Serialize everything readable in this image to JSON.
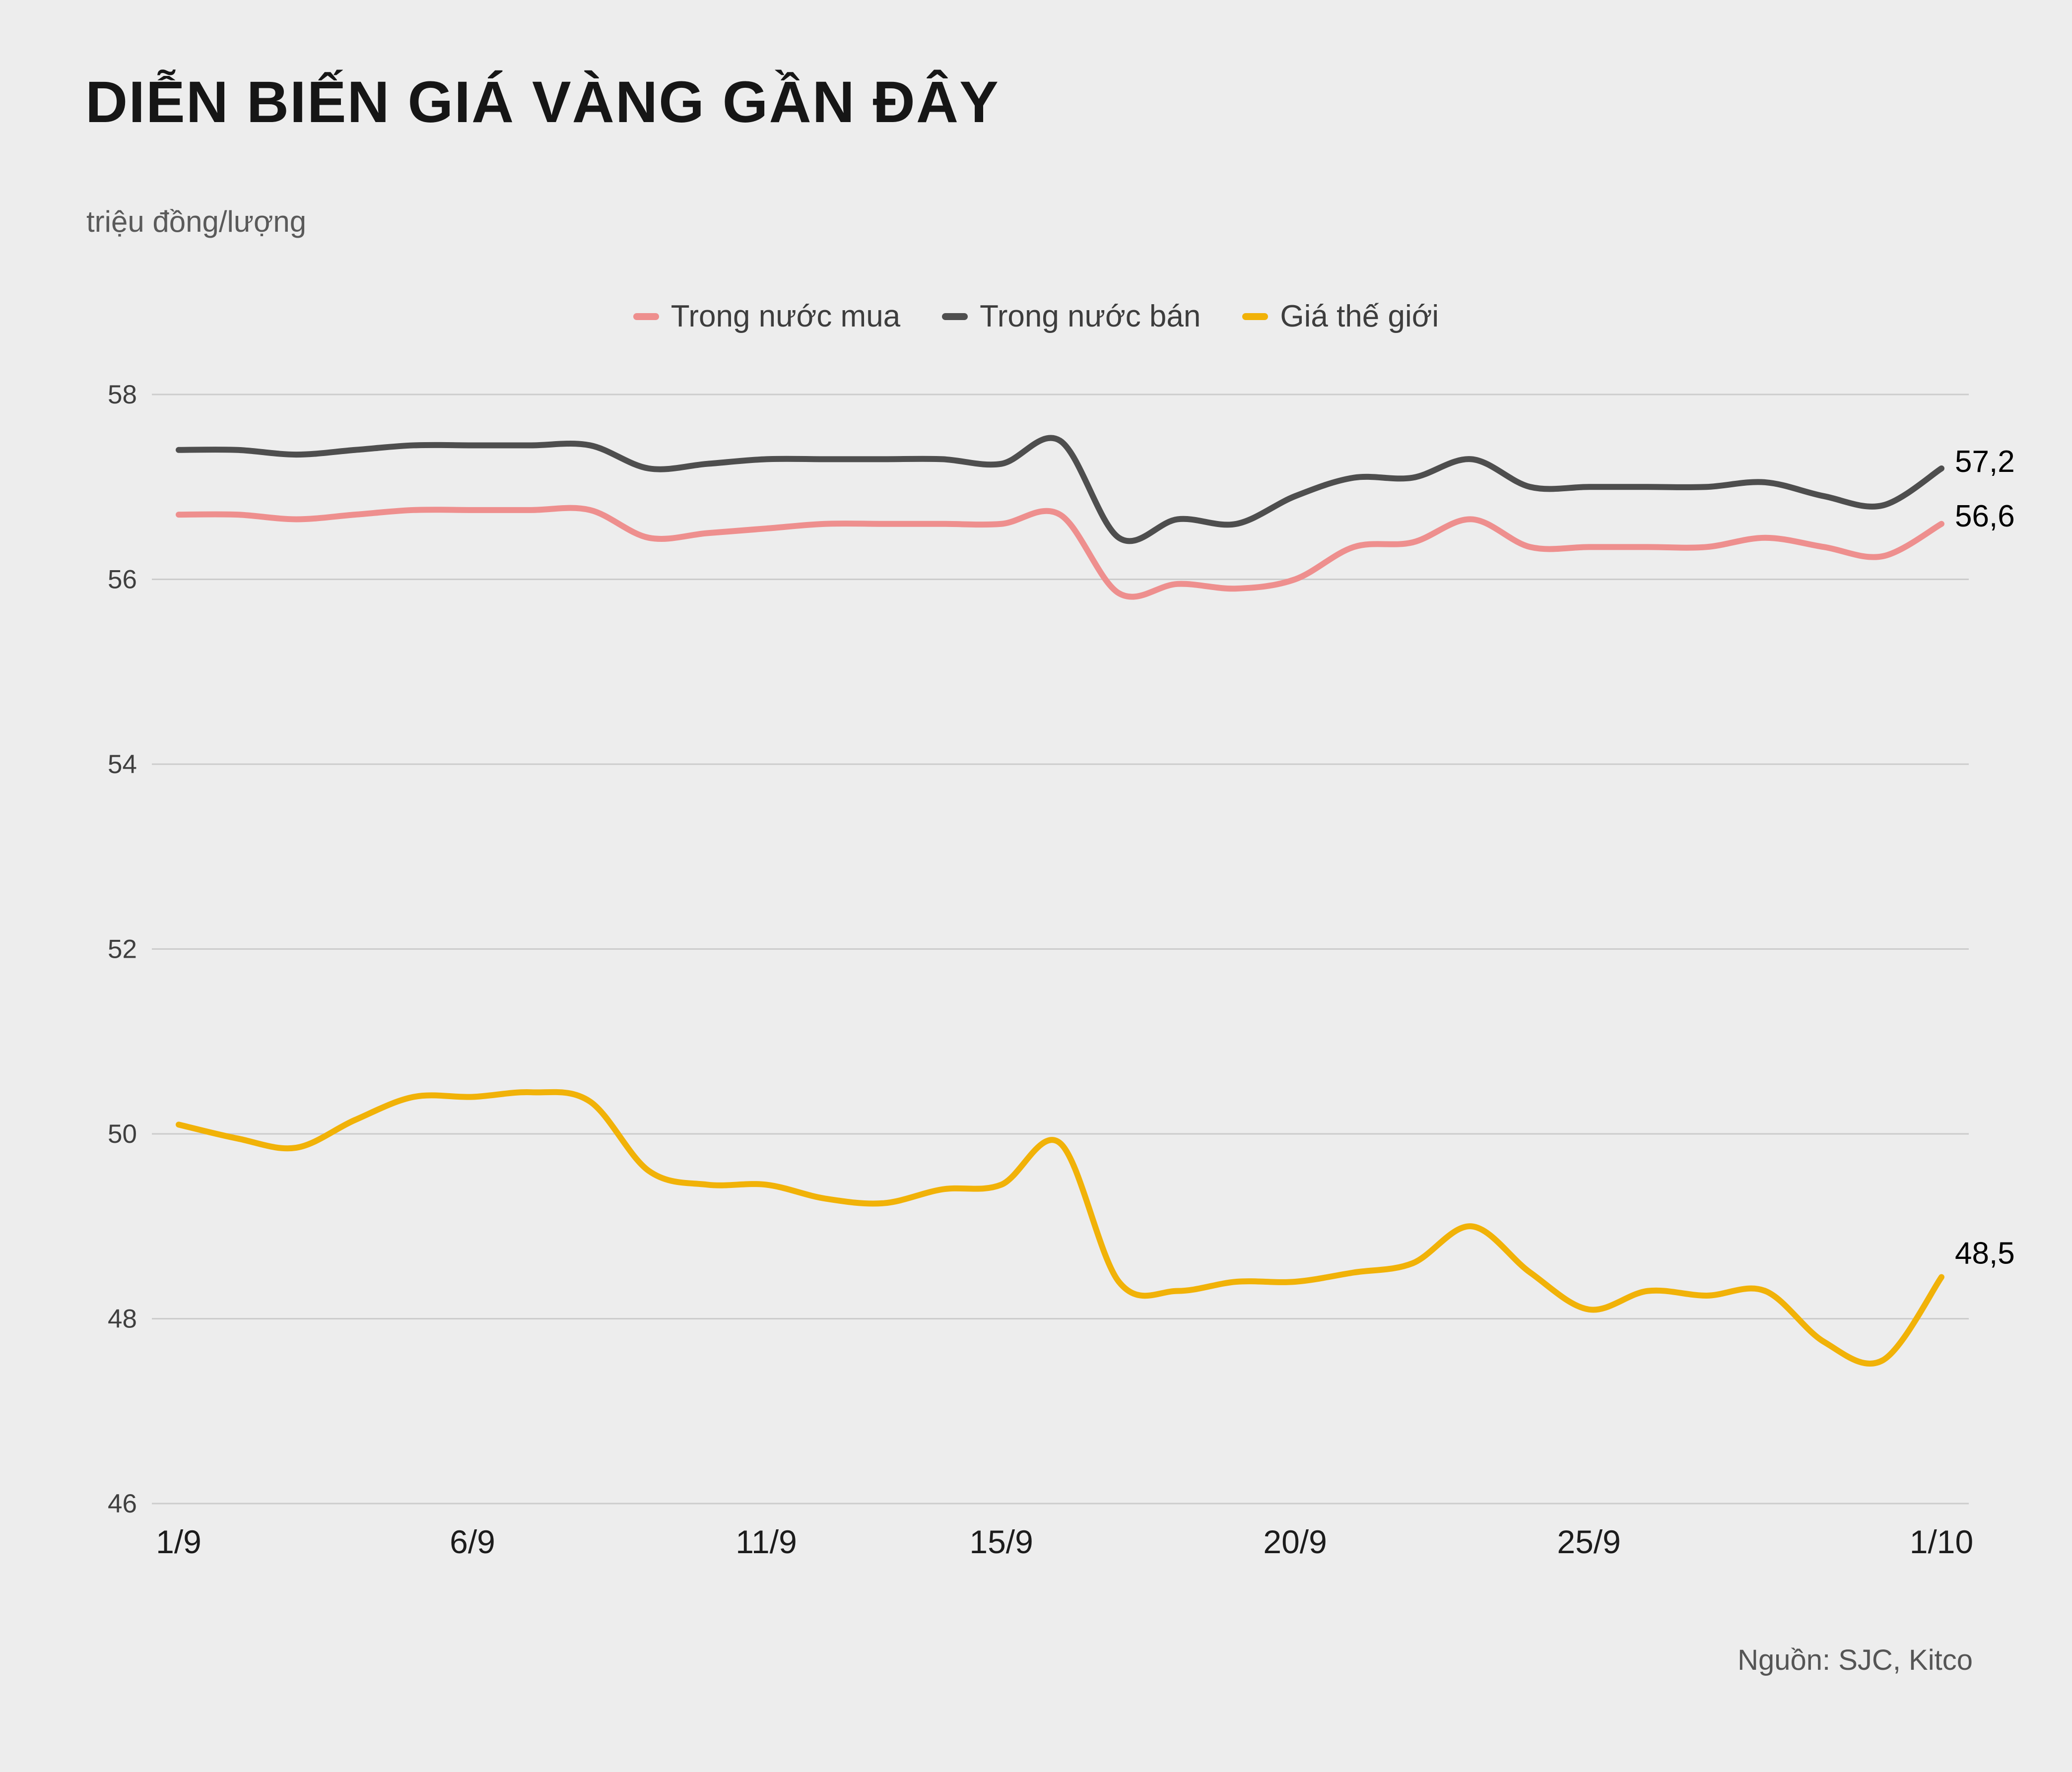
{
  "header": {
    "title": "DIỄN BIẾN GIÁ VÀNG GẦN ĐÂY",
    "subtitle": "triệu đồng/lượng"
  },
  "source": "Nguồn: SJC, Kitco",
  "colors": {
    "background": "#ededed",
    "grid": "#cccccc",
    "axis_text": "#3f3f3f",
    "x_axis_text": "#1c1c1c",
    "end_label_text": "#000000"
  },
  "chart_data": {
    "type": "line",
    "title": "DIỄN BIẾN GIÁ VÀNG GẦN ĐÂY",
    "ylabel": "triệu đồng/lượng",
    "ylim": [
      46,
      58
    ],
    "yticks": [
      46,
      48,
      50,
      52,
      54,
      56,
      58
    ],
    "xticks": [
      {
        "label": "1/9",
        "day": 0
      },
      {
        "label": "6/9",
        "day": 5
      },
      {
        "label": "11/9",
        "day": 10
      },
      {
        "label": "15/9",
        "day": 14
      },
      {
        "label": "20/9",
        "day": 19
      },
      {
        "label": "25/9",
        "day": 24
      },
      {
        "label": "1/10",
        "day": 30
      }
    ],
    "grid": "horizontal",
    "legend_position": "top",
    "series": [
      {
        "name": "Trong nước mua",
        "color": "#ee8f8e",
        "end_label": "56,6",
        "values": [
          56.7,
          56.7,
          56.65,
          56.7,
          56.75,
          56.75,
          56.75,
          56.75,
          56.45,
          56.5,
          56.55,
          56.6,
          56.6,
          56.6,
          56.6,
          56.7,
          55.85,
          55.95,
          55.9,
          56.0,
          56.35,
          56.4,
          56.65,
          56.35,
          56.35,
          56.35,
          56.35,
          56.45,
          56.35,
          56.25,
          56.6
        ]
      },
      {
        "name": "Trong nước bán",
        "color": "#4e4e4e",
        "end_label": "57,2",
        "values": [
          57.4,
          57.4,
          57.35,
          57.4,
          57.45,
          57.45,
          57.45,
          57.45,
          57.2,
          57.25,
          57.3,
          57.3,
          57.3,
          57.3,
          57.25,
          57.5,
          56.45,
          56.65,
          56.6,
          56.9,
          57.1,
          57.1,
          57.3,
          57.0,
          57.0,
          57.0,
          57.0,
          57.05,
          56.9,
          56.8,
          57.2
        ]
      },
      {
        "name": "Giá thế giới",
        "color": "#f1b208",
        "end_label": "48,5",
        "values": [
          50.1,
          49.95,
          49.85,
          50.15,
          50.4,
          50.4,
          50.45,
          50.35,
          49.6,
          49.45,
          49.45,
          49.3,
          49.25,
          49.4,
          49.45,
          49.9,
          48.4,
          48.3,
          48.4,
          48.4,
          48.5,
          48.6,
          49.0,
          48.5,
          48.1,
          48.3,
          48.25,
          48.3,
          47.75,
          47.55,
          48.45
        ]
      }
    ]
  }
}
